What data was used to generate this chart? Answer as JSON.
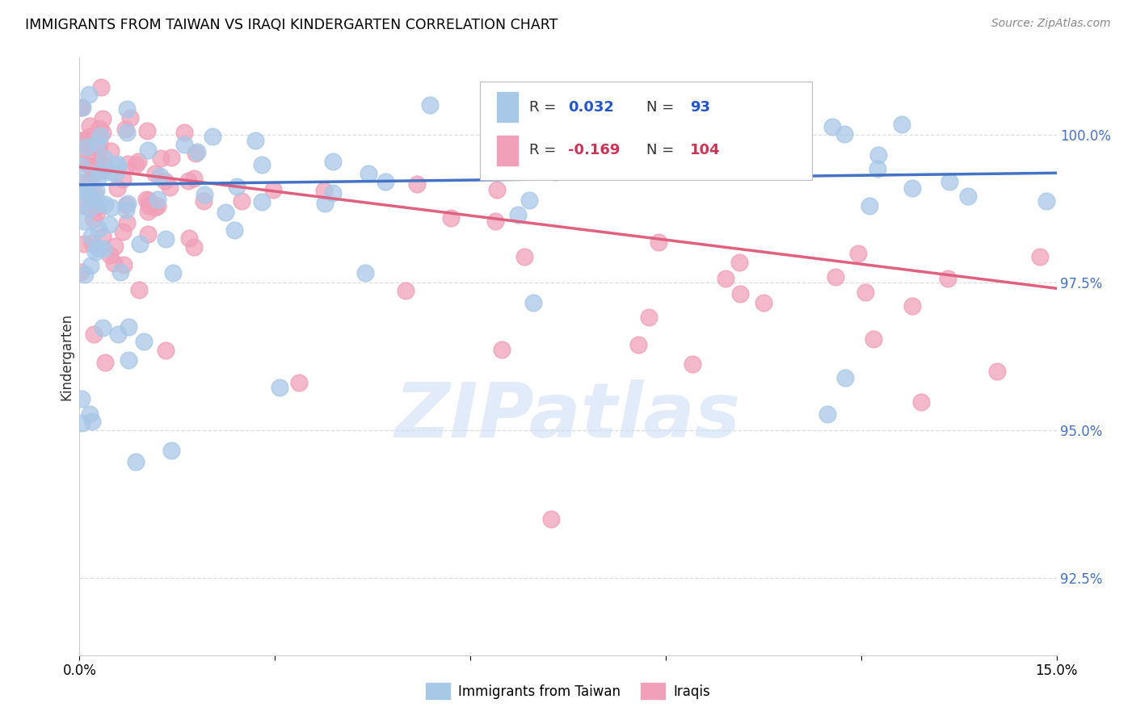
{
  "title": "IMMIGRANTS FROM TAIWAN VS IRAQI KINDERGARTEN CORRELATION CHART",
  "source": "Source: ZipAtlas.com",
  "ylabel": "Kindergarten",
  "xlim": [
    0.0,
    15.0
  ],
  "ylim": [
    91.2,
    101.3
  ],
  "color_taiwan": "#A8C8E8",
  "color_iraq": "#F0A0B8",
  "color_taiwan_line": "#4472C4",
  "color_iraq_line": "#E06080",
  "color_blue_text": "#2255CC",
  "color_pink_text": "#CC3355",
  "color_legend_text": "#2255CC",
  "tick_color_right": "#4472C4",
  "grid_color": "#DDDDDD",
  "bg_color": "#FFFFFF",
  "watermark": "ZIPatlas",
  "taiwan_line_x": [
    0.0,
    15.0
  ],
  "taiwan_line_y": [
    99.15,
    99.35
  ],
  "iraq_line_x": [
    0.0,
    15.0
  ],
  "iraq_line_y": [
    99.45,
    97.4
  ]
}
